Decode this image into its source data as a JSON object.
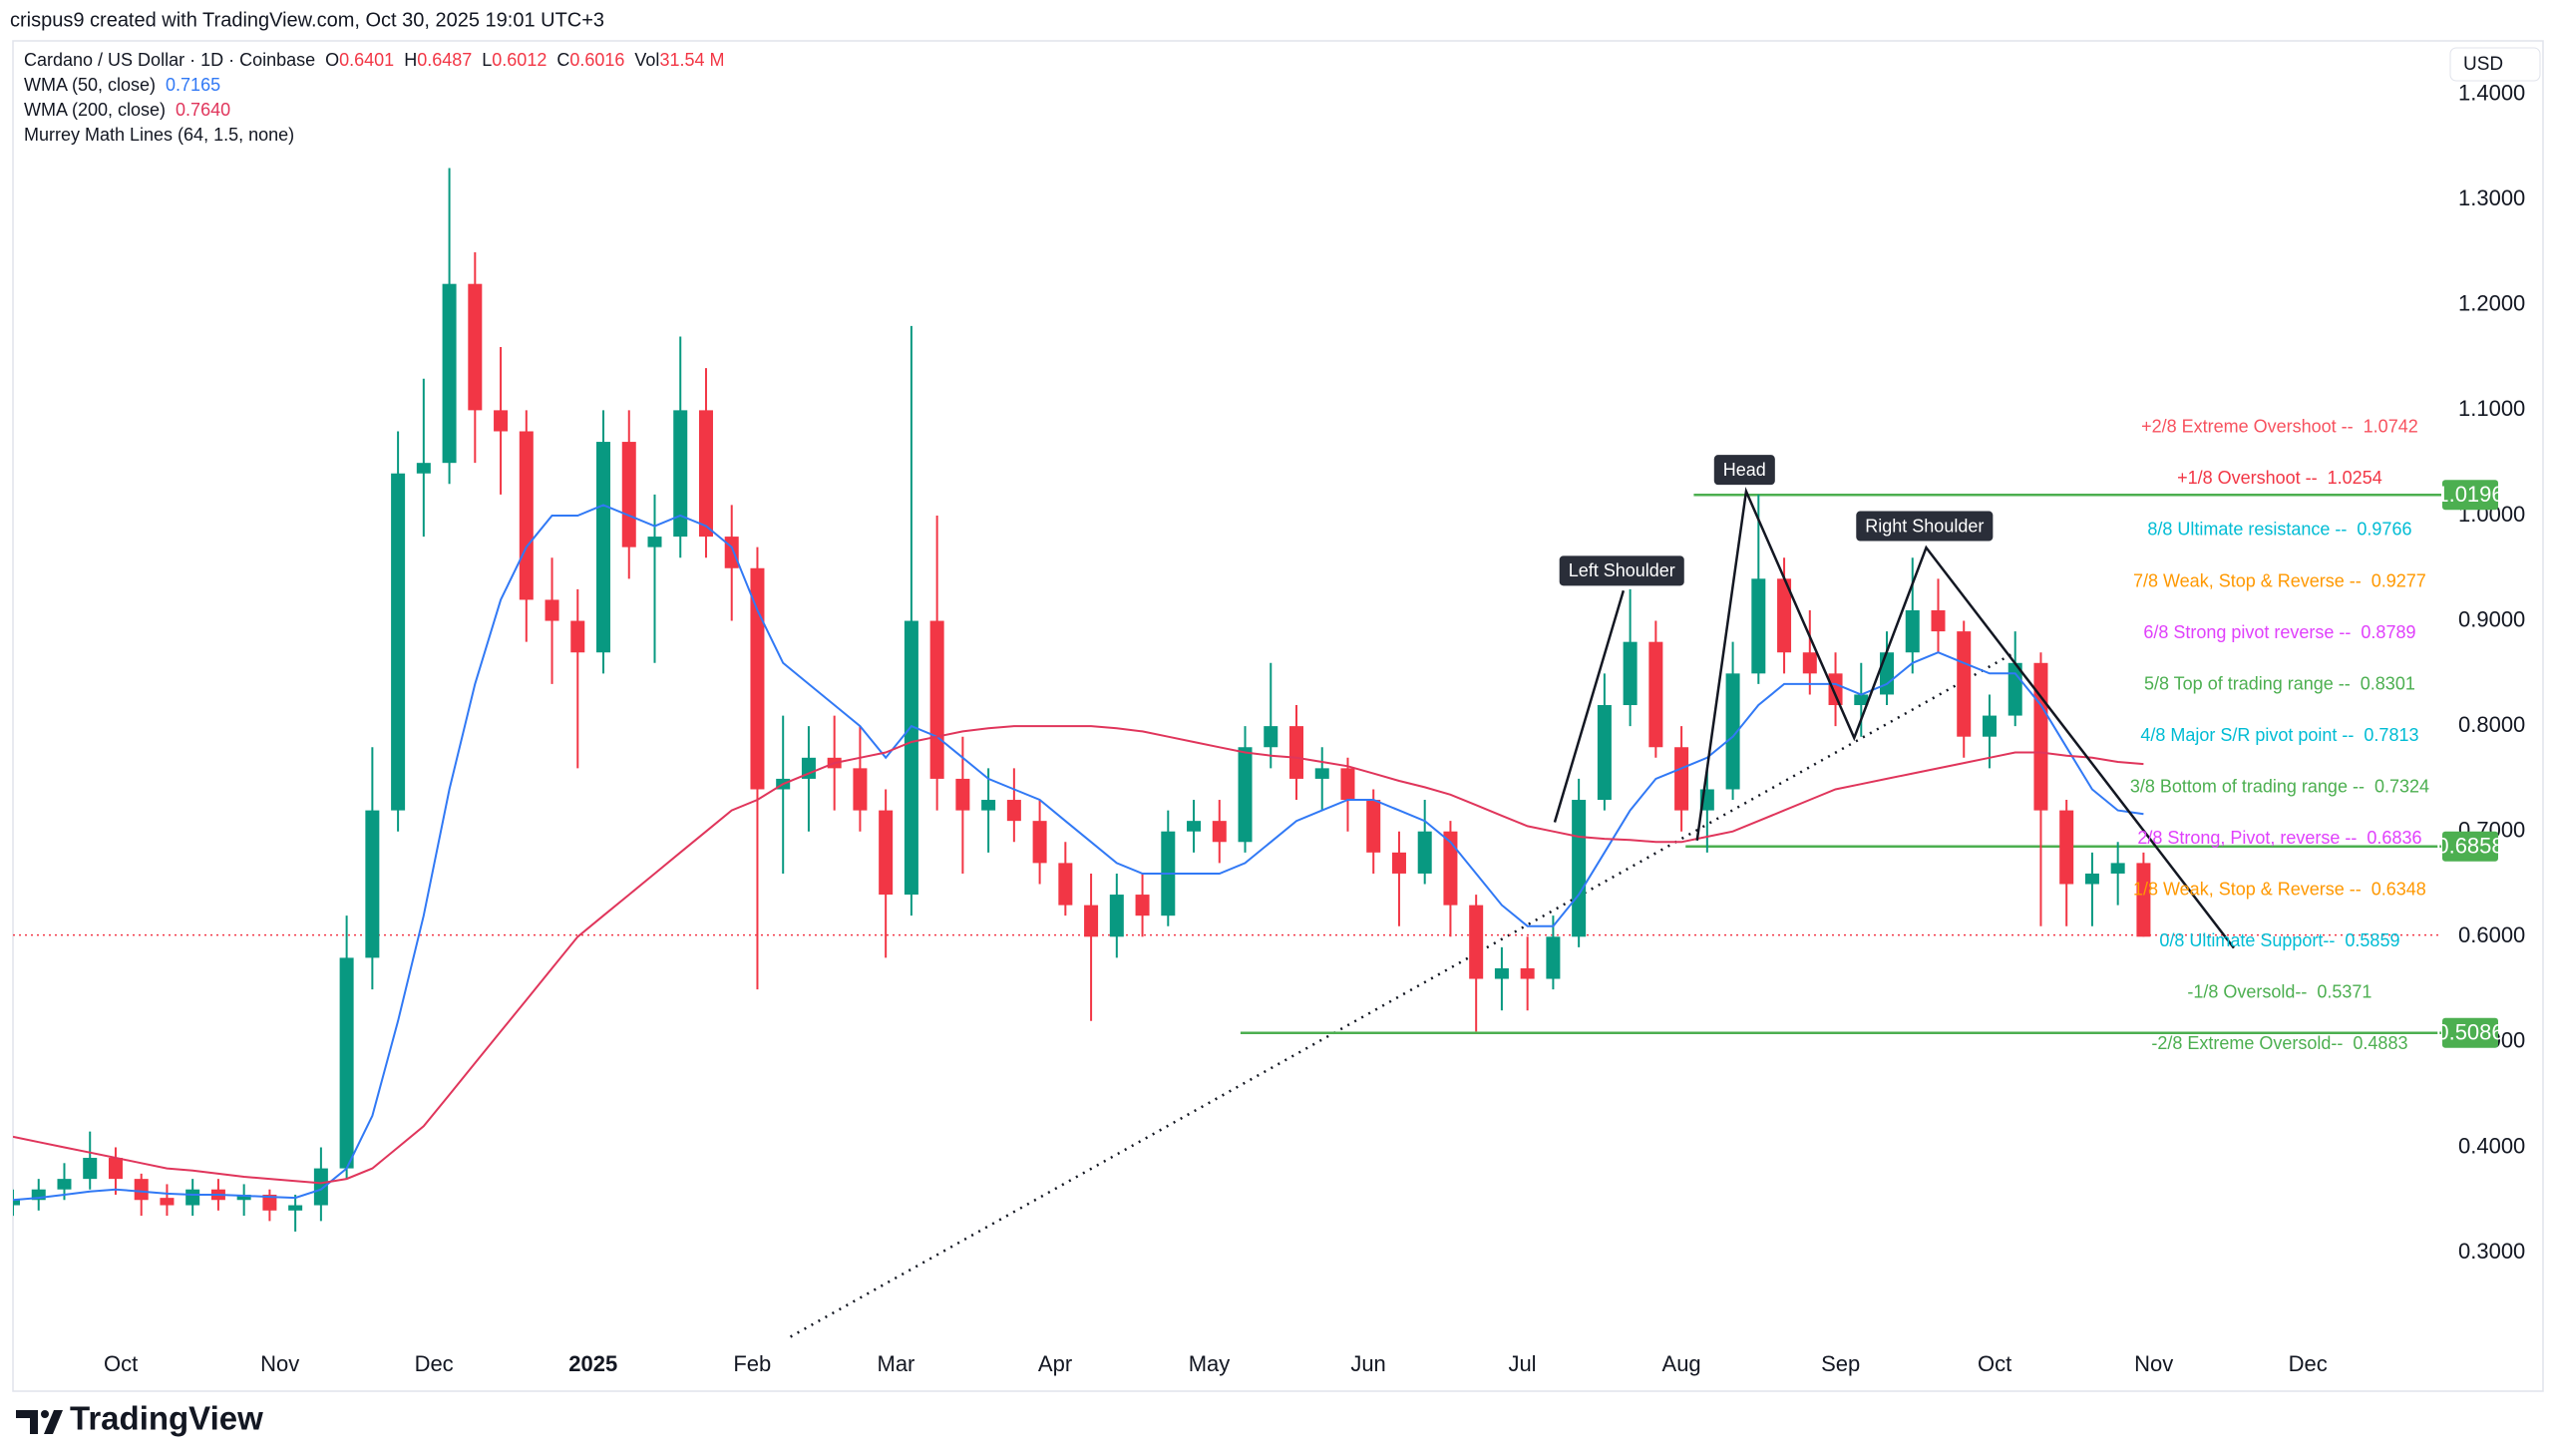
{
  "header": {
    "credit": "crispus9 created with TradingView.com, Oct 30, 2025 19:01 UTC+3",
    "currency": "USD",
    "logo": "TradingView"
  },
  "chart_data": {
    "type": "candlestick",
    "legend": {
      "symbol": "Cardano / US Dollar · 1D · Coinbase",
      "ohlc": [
        {
          "label": "O",
          "value": 0.6401
        },
        {
          "label": "H",
          "value": 0.6487
        },
        {
          "label": "L",
          "value": 0.6012
        },
        {
          "label": "C",
          "value": 0.6016
        }
      ],
      "volume": {
        "label": "Vol",
        "value": "31.54 M"
      },
      "indicator": "Murrey Math Lines (64, 1.5, none)"
    },
    "xlim": [
      -21,
      452
    ],
    "ylim": [
      0.2167,
      1.4508
    ],
    "xticks": [
      {
        "value": 0,
        "label": "Oct"
      },
      {
        "value": 31,
        "label": "Nov"
      },
      {
        "value": 61,
        "label": "Dec"
      },
      {
        "value": 92,
        "label": "2025"
      },
      {
        "value": 123,
        "label": "Feb"
      },
      {
        "value": 151,
        "label": "Mar"
      },
      {
        "value": 182,
        "label": "Apr"
      },
      {
        "value": 212,
        "label": "May"
      },
      {
        "value": 243,
        "label": "Jun"
      },
      {
        "value": 273,
        "label": "Jul"
      },
      {
        "value": 304,
        "label": "Aug"
      },
      {
        "value": 335,
        "label": "Sep"
      },
      {
        "value": 365,
        "label": "Oct"
      },
      {
        "value": 396,
        "label": "Nov"
      },
      {
        "value": 426,
        "label": "Dec"
      }
    ],
    "yticks": [
      {
        "value": 0.3,
        "label": "0.3000"
      },
      {
        "value": 0.4,
        "label": "0.4000"
      },
      {
        "value": 0.5,
        "label": "0.5000"
      },
      {
        "value": 0.6,
        "label": "0.6000"
      },
      {
        "value": 0.7,
        "label": "0.7000"
      },
      {
        "value": 0.8,
        "label": "0.8000"
      },
      {
        "value": 0.9,
        "label": "0.9000"
      },
      {
        "value": 1.0,
        "label": "1.0000"
      },
      {
        "value": 1.1,
        "label": "1.1000"
      },
      {
        "value": 1.2,
        "label": "1.2000"
      },
      {
        "value": 1.3,
        "label": "1.3000"
      },
      {
        "value": 1.4,
        "label": "1.4000"
      }
    ],
    "up_color": "#089981",
    "down_color": "#f23645",
    "x": [
      -21,
      -16,
      -11,
      -6,
      -1,
      4,
      9,
      14,
      19,
      24,
      29,
      34,
      39,
      44,
      49,
      54,
      59,
      64,
      69,
      74,
      79,
      84,
      89,
      94,
      99,
      104,
      109,
      114,
      119,
      124,
      129,
      134,
      139,
      144,
      149,
      154,
      159,
      164,
      169,
      174,
      179,
      184,
      189,
      194,
      199,
      204,
      209,
      214,
      219,
      224,
      229,
      234,
      239,
      244,
      249,
      254,
      259,
      264,
      269,
      274,
      279,
      284,
      289,
      294,
      299,
      304,
      309,
      314,
      319,
      324,
      329,
      334,
      339,
      344,
      349,
      354,
      359,
      364,
      369,
      374,
      379,
      384,
      389,
      394
    ],
    "ohlc": [
      [
        0.345,
        0.36,
        0.335,
        0.35
      ],
      [
        0.35,
        0.37,
        0.34,
        0.36
      ],
      [
        0.36,
        0.385,
        0.35,
        0.37
      ],
      [
        0.37,
        0.415,
        0.36,
        0.39
      ],
      [
        0.39,
        0.4,
        0.355,
        0.37
      ],
      [
        0.37,
        0.375,
        0.335,
        0.35
      ],
      [
        0.352,
        0.365,
        0.335,
        0.345
      ],
      [
        0.345,
        0.37,
        0.335,
        0.36
      ],
      [
        0.36,
        0.37,
        0.34,
        0.35
      ],
      [
        0.35,
        0.365,
        0.335,
        0.355
      ],
      [
        0.355,
        0.36,
        0.33,
        0.34
      ],
      [
        0.34,
        0.355,
        0.32,
        0.345
      ],
      [
        0.345,
        0.4,
        0.33,
        0.38
      ],
      [
        0.38,
        0.62,
        0.37,
        0.58
      ],
      [
        0.58,
        0.78,
        0.55,
        0.72
      ],
      [
        0.72,
        1.08,
        0.7,
        1.04
      ],
      [
        1.04,
        1.13,
        0.98,
        1.05
      ],
      [
        1.05,
        1.33,
        1.03,
        1.22
      ],
      [
        1.22,
        1.25,
        1.05,
        1.1
      ],
      [
        1.1,
        1.16,
        1.02,
        1.08
      ],
      [
        1.08,
        1.1,
        0.88,
        0.92
      ],
      [
        0.92,
        0.96,
        0.84,
        0.9
      ],
      [
        0.9,
        0.93,
        0.76,
        0.87
      ],
      [
        0.87,
        1.1,
        0.85,
        1.07
      ],
      [
        1.07,
        1.1,
        0.94,
        0.97
      ],
      [
        0.97,
        1.02,
        0.86,
        0.98
      ],
      [
        0.98,
        1.17,
        0.96,
        1.1
      ],
      [
        1.1,
        1.14,
        0.96,
        0.98
      ],
      [
        0.98,
        1.01,
        0.9,
        0.95
      ],
      [
        0.95,
        0.97,
        0.55,
        0.74
      ],
      [
        0.74,
        0.81,
        0.66,
        0.75
      ],
      [
        0.75,
        0.8,
        0.7,
        0.77
      ],
      [
        0.77,
        0.81,
        0.72,
        0.76
      ],
      [
        0.76,
        0.8,
        0.7,
        0.72
      ],
      [
        0.72,
        0.74,
        0.58,
        0.64
      ],
      [
        0.64,
        1.18,
        0.62,
        0.9
      ],
      [
        0.9,
        1.0,
        0.72,
        0.75
      ],
      [
        0.75,
        0.79,
        0.66,
        0.72
      ],
      [
        0.72,
        0.76,
        0.68,
        0.73
      ],
      [
        0.73,
        0.76,
        0.69,
        0.71
      ],
      [
        0.71,
        0.73,
        0.65,
        0.67
      ],
      [
        0.67,
        0.69,
        0.62,
        0.63
      ],
      [
        0.63,
        0.66,
        0.52,
        0.6
      ],
      [
        0.6,
        0.66,
        0.58,
        0.64
      ],
      [
        0.64,
        0.66,
        0.6,
        0.62
      ],
      [
        0.62,
        0.72,
        0.61,
        0.7
      ],
      [
        0.7,
        0.73,
        0.68,
        0.71
      ],
      [
        0.71,
        0.73,
        0.67,
        0.69
      ],
      [
        0.69,
        0.8,
        0.68,
        0.78
      ],
      [
        0.78,
        0.86,
        0.76,
        0.8
      ],
      [
        0.8,
        0.82,
        0.73,
        0.75
      ],
      [
        0.75,
        0.78,
        0.72,
        0.76
      ],
      [
        0.76,
        0.77,
        0.7,
        0.73
      ],
      [
        0.73,
        0.74,
        0.66,
        0.68
      ],
      [
        0.68,
        0.7,
        0.61,
        0.66
      ],
      [
        0.66,
        0.73,
        0.65,
        0.7
      ],
      [
        0.7,
        0.71,
        0.6,
        0.63
      ],
      [
        0.63,
        0.64,
        0.51,
        0.56
      ],
      [
        0.56,
        0.59,
        0.53,
        0.57
      ],
      [
        0.57,
        0.6,
        0.53,
        0.56
      ],
      [
        0.56,
        0.62,
        0.55,
        0.6
      ],
      [
        0.6,
        0.75,
        0.59,
        0.73
      ],
      [
        0.73,
        0.85,
        0.72,
        0.82
      ],
      [
        0.82,
        0.93,
        0.8,
        0.88
      ],
      [
        0.88,
        0.9,
        0.77,
        0.78
      ],
      [
        0.78,
        0.8,
        0.7,
        0.72
      ],
      [
        0.72,
        0.76,
        0.68,
        0.74
      ],
      [
        0.74,
        0.88,
        0.73,
        0.85
      ],
      [
        0.85,
        1.02,
        0.84,
        0.94
      ],
      [
        0.94,
        0.96,
        0.85,
        0.87
      ],
      [
        0.87,
        0.91,
        0.83,
        0.85
      ],
      [
        0.85,
        0.87,
        0.8,
        0.82
      ],
      [
        0.82,
        0.86,
        0.79,
        0.83
      ],
      [
        0.83,
        0.89,
        0.82,
        0.87
      ],
      [
        0.87,
        0.96,
        0.85,
        0.91
      ],
      [
        0.91,
        0.94,
        0.87,
        0.89
      ],
      [
        0.89,
        0.9,
        0.77,
        0.79
      ],
      [
        0.79,
        0.83,
        0.76,
        0.81
      ],
      [
        0.81,
        0.89,
        0.8,
        0.86
      ],
      [
        0.86,
        0.87,
        0.61,
        0.72
      ],
      [
        0.72,
        0.73,
        0.61,
        0.65
      ],
      [
        0.65,
        0.68,
        0.61,
        0.66
      ],
      [
        0.66,
        0.69,
        0.63,
        0.67
      ],
      [
        0.67,
        0.68,
        0.6,
        0.6
      ]
    ],
    "series": [
      {
        "name": "WMA (50, close)",
        "legend_value": "0.7165",
        "color": "#3179f5",
        "values": [
          0.35,
          0.352,
          0.355,
          0.358,
          0.36,
          0.358,
          0.356,
          0.355,
          0.355,
          0.354,
          0.353,
          0.352,
          0.36,
          0.38,
          0.43,
          0.52,
          0.62,
          0.74,
          0.84,
          0.92,
          0.97,
          1.0,
          1.0,
          1.01,
          1.0,
          0.99,
          1.0,
          0.99,
          0.97,
          0.91,
          0.86,
          0.84,
          0.82,
          0.8,
          0.77,
          0.8,
          0.79,
          0.77,
          0.75,
          0.74,
          0.73,
          0.71,
          0.69,
          0.67,
          0.66,
          0.66,
          0.66,
          0.66,
          0.67,
          0.69,
          0.71,
          0.72,
          0.73,
          0.73,
          0.72,
          0.71,
          0.69,
          0.66,
          0.63,
          0.61,
          0.61,
          0.64,
          0.68,
          0.72,
          0.75,
          0.76,
          0.77,
          0.79,
          0.82,
          0.84,
          0.84,
          0.84,
          0.83,
          0.84,
          0.86,
          0.87,
          0.86,
          0.85,
          0.85,
          0.82,
          0.78,
          0.74,
          0.72,
          0.7165
        ]
      },
      {
        "name": "WMA (200, close)",
        "legend_value": "0.7640",
        "color": "#e0355b",
        "values": [
          0.41,
          0.405,
          0.4,
          0.395,
          0.39,
          0.385,
          0.38,
          0.378,
          0.375,
          0.372,
          0.37,
          0.368,
          0.366,
          0.37,
          0.38,
          0.4,
          0.42,
          0.45,
          0.48,
          0.51,
          0.54,
          0.57,
          0.6,
          0.62,
          0.64,
          0.66,
          0.68,
          0.7,
          0.72,
          0.73,
          0.745,
          0.755,
          0.765,
          0.77,
          0.775,
          0.785,
          0.79,
          0.795,
          0.798,
          0.8,
          0.8,
          0.8,
          0.8,
          0.798,
          0.795,
          0.79,
          0.785,
          0.78,
          0.775,
          0.772,
          0.77,
          0.766,
          0.762,
          0.755,
          0.748,
          0.742,
          0.735,
          0.725,
          0.715,
          0.705,
          0.7,
          0.695,
          0.693,
          0.692,
          0.69,
          0.69,
          0.695,
          0.7,
          0.71,
          0.72,
          0.73,
          0.74,
          0.745,
          0.75,
          0.755,
          0.76,
          0.765,
          0.77,
          0.775,
          0.775,
          0.772,
          0.77,
          0.766,
          0.764
        ]
      }
    ],
    "murrey": [
      {
        "name": "+2/8 Extreme Overshoot --",
        "value": 1.0742,
        "color": "#f7525f"
      },
      {
        "name": "+1/8 Overshoot --",
        "value": 1.0254,
        "color": "#f23645"
      },
      {
        "name": "8/8 Ultimate resistance --",
        "value": 0.9766,
        "color": "#00bcd4"
      },
      {
        "name": "7/8 Weak, Stop & Reverse --",
        "value": 0.9277,
        "color": "#ff9800"
      },
      {
        "name": "6/8 Strong pivot reverse --",
        "value": 0.8789,
        "color": "#e040fb"
      },
      {
        "name": "5/8 Top of trading range --",
        "value": 0.8301,
        "color": "#4caf50"
      },
      {
        "name": "4/8 Major S/R pivot point --",
        "value": 0.7813,
        "color": "#00bcd4"
      },
      {
        "name": "3/8 Bottom of trading range --",
        "value": 0.7324,
        "color": "#4caf50"
      },
      {
        "name": "2/8 Strong, Pivot, reverse --",
        "value": 0.6836,
        "color": "#e040fb"
      },
      {
        "name": "1/8 Weak, Stop & Reverse --",
        "value": 0.6348,
        "color": "#ff9800"
      },
      {
        "name": "0/8 Ultimate Support--",
        "value": 0.5859,
        "color": "#00bcd4"
      },
      {
        "name": "-1/8 Oversold--",
        "value": 0.5371,
        "color": "#4caf50"
      },
      {
        "name": "-2/8 Extreme Oversold--",
        "value": 0.4883,
        "color": "#4caf50"
      }
    ],
    "levels": [
      {
        "value": 1.0196,
        "color": "#4caf50"
      },
      {
        "value": 0.6858,
        "color": "#4caf50"
      },
      {
        "value": 0.5086,
        "color": "#4caf50"
      }
    ],
    "annotations": [
      "Left Shoulder",
      "Head",
      "Right Shoulder"
    ]
  }
}
